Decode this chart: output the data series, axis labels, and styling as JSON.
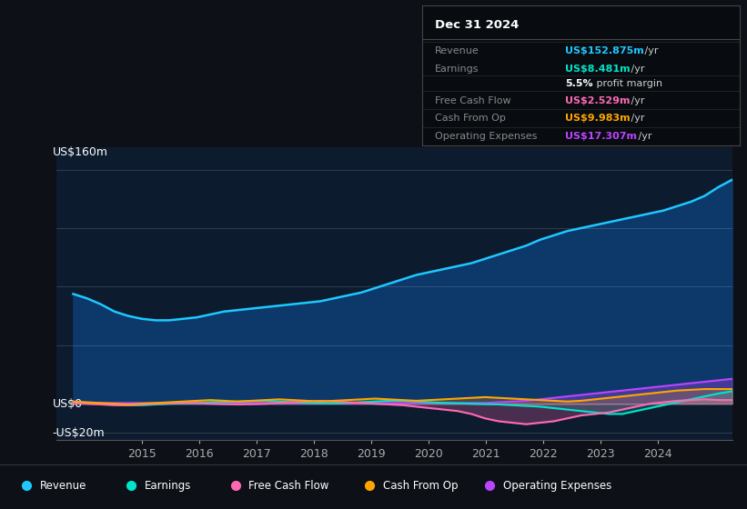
{
  "bg_color": "#0d1117",
  "plot_bg_color": "#0d1b2e",
  "y_label_top": "US$160m",
  "y_label_zero": "US$0",
  "y_label_neg": "-US$20m",
  "ylim": [
    -25,
    175
  ],
  "xlim": [
    2013.5,
    2025.3
  ],
  "x_ticks": [
    2015,
    2016,
    2017,
    2018,
    2019,
    2020,
    2021,
    2022,
    2023,
    2024
  ],
  "info_box_title": "Dec 31 2024",
  "info_rows": [
    {
      "label": "Revenue",
      "val": "US$152.875m",
      "suffix": " /yr",
      "val_color": "#1ec8ff",
      "bold_val": true,
      "extra": null
    },
    {
      "label": "Earnings",
      "val": "US$8.481m",
      "suffix": " /yr",
      "val_color": "#00e5c8",
      "bold_val": true,
      "extra": null
    },
    {
      "label": "",
      "val": "5.5%",
      "suffix": " profit margin",
      "val_color": "#ffffff",
      "bold_val": true,
      "extra": null
    },
    {
      "label": "Free Cash Flow",
      "val": "US$2.529m",
      "suffix": " /yr",
      "val_color": "#ff69b4",
      "bold_val": true,
      "extra": null
    },
    {
      "label": "Cash From Op",
      "val": "US$9.983m",
      "suffix": " /yr",
      "val_color": "#ffa500",
      "bold_val": true,
      "extra": null
    },
    {
      "label": "Operating Expenses",
      "val": "US$17.307m",
      "suffix": " /yr",
      "val_color": "#bb44ff",
      "bold_val": true,
      "extra": null
    }
  ],
  "legend": [
    {
      "label": "Revenue",
      "color": "#1ec8ff"
    },
    {
      "label": "Earnings",
      "color": "#00e5c8"
    },
    {
      "label": "Free Cash Flow",
      "color": "#ff69b4"
    },
    {
      "label": "Cash From Op",
      "color": "#ffa500"
    },
    {
      "label": "Operating Expenses",
      "color": "#bb44ff"
    }
  ],
  "revenue": [
    75,
    72,
    68,
    63,
    60,
    58,
    57,
    57,
    58,
    59,
    61,
    63,
    64,
    65,
    66,
    67,
    68,
    69,
    70,
    72,
    74,
    76,
    79,
    82,
    85,
    88,
    90,
    92,
    94,
    96,
    99,
    102,
    105,
    108,
    112,
    115,
    118,
    120,
    122,
    124,
    126,
    128,
    130,
    132,
    135,
    138,
    142,
    148,
    153
  ],
  "earnings": [
    1,
    0.5,
    0,
    -0.5,
    -1,
    -1,
    -0.5,
    0,
    0.2,
    0.5,
    1,
    1.2,
    1.5,
    1.8,
    2,
    1.5,
    1,
    0.5,
    0.3,
    0.2,
    0.5,
    1,
    1.5,
    2,
    2,
    1.5,
    1,
    0.5,
    0.3,
    0,
    -0.3,
    -0.5,
    -1,
    -1.5,
    -2,
    -3,
    -4,
    -5,
    -6,
    -7,
    -7,
    -5,
    -3,
    -1,
    1,
    3,
    5,
    7,
    8.5
  ],
  "free_cash_flow": [
    0.5,
    0,
    -0.5,
    -1,
    -1,
    -0.5,
    0,
    0.3,
    0.5,
    0.3,
    0,
    -0.3,
    -0.5,
    -0.3,
    0,
    0.5,
    1,
    1.5,
    2,
    1.5,
    1,
    0.5,
    0,
    -0.5,
    -1,
    -2,
    -3,
    -4,
    -5,
    -7,
    -10,
    -12,
    -13,
    -14,
    -13,
    -12,
    -10,
    -8,
    -7,
    -6,
    -4,
    -2,
    0,
    1,
    2,
    2.5,
    3,
    2.5,
    2.5
  ],
  "cash_from_op": [
    1.5,
    1,
    0.5,
    0,
    -0.5,
    0,
    0.5,
    1,
    1.5,
    2,
    2.5,
    2,
    1.5,
    2,
    2.5,
    3,
    2.5,
    2,
    1.5,
    2,
    2.5,
    3,
    3.5,
    3,
    2.5,
    2,
    2.5,
    3,
    3.5,
    4,
    4.5,
    4,
    3.5,
    3,
    2.5,
    2,
    1.5,
    2,
    3,
    4,
    5,
    6,
    7,
    8,
    9,
    9.5,
    10,
    10,
    10
  ],
  "op_expenses": [
    0.5,
    0.5,
    0.5,
    0.5,
    0.5,
    0.5,
    0.5,
    0.5,
    0.5,
    0.5,
    0.5,
    0.5,
    0.5,
    0.5,
    0.5,
    0.5,
    0.5,
    0.5,
    0.5,
    0.5,
    0.5,
    0.5,
    0.5,
    0.5,
    0.5,
    0.5,
    0.5,
    0.5,
    0.5,
    0.5,
    0.5,
    1,
    1.5,
    2,
    3,
    4,
    5,
    6,
    7,
    8,
    9,
    10,
    11,
    12,
    13,
    14,
    15,
    16,
    17
  ],
  "hgrid_y": [
    160,
    120,
    80,
    40,
    0,
    -20
  ]
}
